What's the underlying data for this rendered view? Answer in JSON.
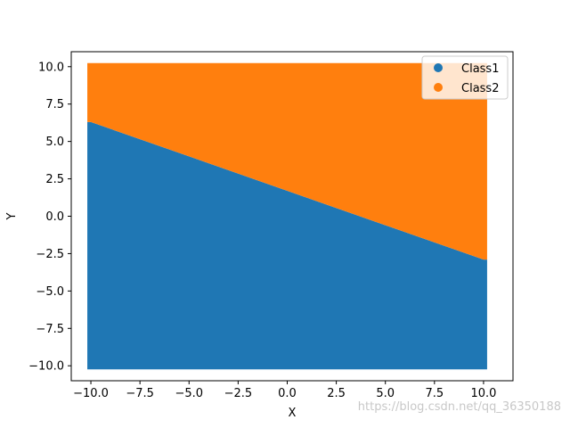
{
  "chart_data": {
    "type": "scatter",
    "xlabel": "X",
    "ylabel": "Y",
    "xlim": [
      -11.0,
      11.5
    ],
    "ylim": [
      -11.0,
      11.0
    ],
    "xticks": [
      -10.0,
      -7.5,
      -5.0,
      -2.5,
      0.0,
      2.5,
      5.0,
      7.5,
      10.0
    ],
    "yticks": [
      -10.0,
      -7.5,
      -5.0,
      -2.5,
      0.0,
      2.5,
      5.0,
      7.5,
      10.0
    ],
    "xtick_labels": [
      "−10.0",
      "−7.5",
      "−5.0",
      "−2.5",
      "0.0",
      "2.5",
      "5.0",
      "7.5",
      "10.0"
    ],
    "ytick_labels": [
      "−10.0",
      "−7.5",
      "−5.0",
      "−2.5",
      "0.0",
      "2.5",
      "5.0",
      "7.5",
      "10.0"
    ],
    "domain": {
      "x": [
        -10,
        10
      ],
      "y": [
        -10,
        10
      ]
    },
    "boundary": [
      {
        "x": -10,
        "y": 6.3
      },
      {
        "x": -5,
        "y": 4.0
      },
      {
        "x": 0,
        "y": 1.7
      },
      {
        "x": 5,
        "y": -0.6
      },
      {
        "x": 10,
        "y": -2.9
      }
    ],
    "series": [
      {
        "name": "Class1",
        "color": "#1f77b4",
        "region": "below boundary"
      },
      {
        "name": "Class2",
        "color": "#ff7f0e",
        "region": "above boundary"
      }
    ],
    "legend": {
      "position": "upper-right"
    },
    "grid": false
  },
  "watermark": "https://blog.csdn.net/qq_36350188"
}
